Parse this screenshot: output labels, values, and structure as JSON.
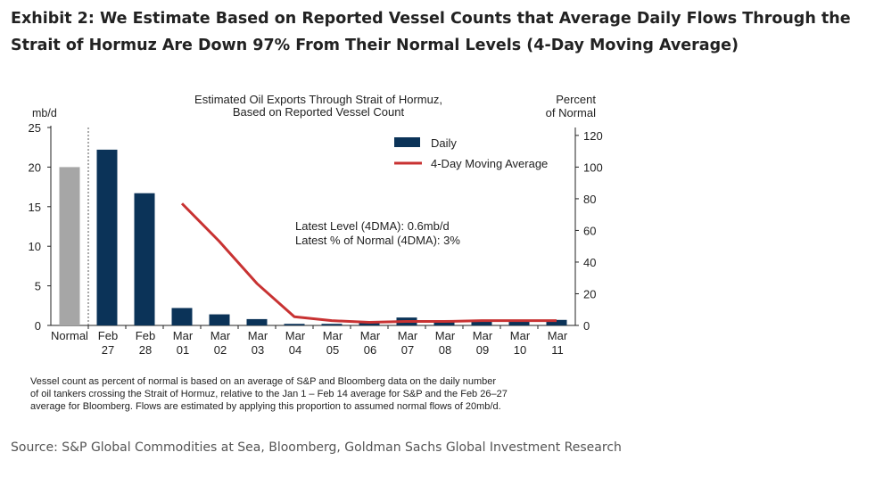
{
  "title": "Exhibit 2: We Estimate Based on Reported Vessel Counts that Average Daily Flows Through the Strait of Hormuz Are Down 97% From Their Normal Levels (4-Day Moving Average)",
  "source": "Source: S&P Global Commodities at Sea, Bloomberg, Goldman Sachs Global Investment Research",
  "chart_data": {
    "type": "bar",
    "title": [
      "Estimated Oil Exports Through Strait of Hormuz,",
      "Based on Reported Vessel Count"
    ],
    "ylabel": "mb/d",
    "y2label": [
      "Percent",
      "of Normal"
    ],
    "ylim": [
      0,
      25
    ],
    "y2lim": [
      0,
      125
    ],
    "yticks": [
      0,
      5,
      10,
      15,
      20,
      25
    ],
    "y2ticks": [
      0,
      20,
      40,
      60,
      80,
      100,
      120
    ],
    "categories": [
      [
        "Normal",
        ""
      ],
      [
        "Feb",
        "27"
      ],
      [
        "Feb",
        "28"
      ],
      [
        "Mar",
        "01"
      ],
      [
        "Mar",
        "02"
      ],
      [
        "Mar",
        "03"
      ],
      [
        "Mar",
        "04"
      ],
      [
        "Mar",
        "05"
      ],
      [
        "Mar",
        "06"
      ],
      [
        "Mar",
        "07"
      ],
      [
        "Mar",
        "08"
      ],
      [
        "Mar",
        "09"
      ],
      [
        "Mar",
        "10"
      ],
      [
        "Mar",
        "11"
      ]
    ],
    "series": [
      {
        "name": "Daily",
        "type": "bar",
        "color": "#0b3358",
        "values": [
          20,
          22.2,
          16.7,
          2.2,
          1.4,
          0.8,
          0.2,
          0.2,
          0.4,
          1.0,
          0.5,
          0.6,
          0.6,
          0.7
        ]
      },
      {
        "name": "4-Day Moving Average",
        "type": "line",
        "color": "#c83232",
        "values": [
          null,
          null,
          null,
          15.4,
          10.6,
          5.3,
          1.1,
          0.6,
          0.4,
          0.5,
          0.5,
          0.6,
          0.6,
          0.6
        ]
      }
    ],
    "normal_color": "#a6a6a6",
    "legend_position": "top-right",
    "annotations": [
      "Latest Level (4DMA): 0.6mb/d",
      "Latest % of Normal (4DMA): 3%"
    ],
    "footnote": [
      "Vessel count as percent of normal is based on an average of S&P and Bloomberg data on the daily number",
      "of oil tankers crossing the Strait of Hormuz, relative to the Jan 1 – Feb 14 average for S&P and the Feb 26–27",
      "average for Bloomberg. Flows are estimated by applying this proportion to assumed normal flows of 20mb/d."
    ]
  }
}
